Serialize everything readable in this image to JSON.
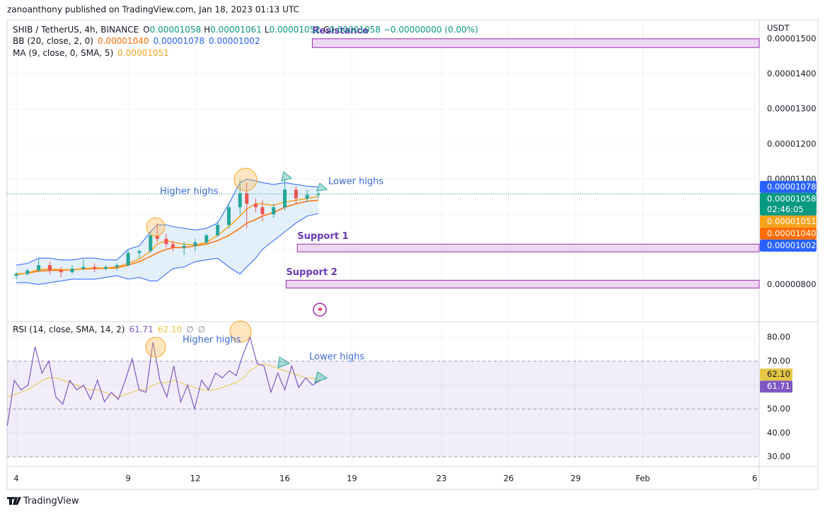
{
  "header": {
    "title": "zanoanthony published on TradingView.com, Jan 18, 2023 01:13 UTC"
  },
  "footer": {
    "brand": "TradingView"
  },
  "chart_data": [
    {
      "type": "candlestick",
      "symbol": "SHIB / TetherUS, 4h, BINANCE",
      "currency": "USDT",
      "ohlc": [
        {
          "name": "O",
          "value": 1.058e-05,
          "label": "0.00001058"
        },
        {
          "name": "H",
          "value": 1.061e-05,
          "label": "0.00001061"
        },
        {
          "name": "L",
          "value": 1.052e-05,
          "label": "0.00001052"
        },
        {
          "name": "C",
          "value": 1.058e-05,
          "label": "0.00001058"
        }
      ],
      "change": "−0.00000000 (0.00%)",
      "up_color": "#26a69a",
      "down_color": "#ef5350",
      "xlim": [
        3.59,
        37.2
      ],
      "ylim": [
        7e-06,
        1.55e-05
      ],
      "yticks": [
        {
          "value": 8e-06,
          "label": "0.00000800"
        },
        {
          "value": 9e-06,
          "label": "0.00000900"
        },
        {
          "value": 1e-05,
          "label": "0.00001000"
        },
        {
          "value": 1.1e-05,
          "label": "0.00001100"
        },
        {
          "value": 1.2e-05,
          "label": "0.00001200"
        },
        {
          "value": 1.3e-05,
          "label": "0.00001300"
        },
        {
          "value": 1.4e-05,
          "label": "0.00001400"
        },
        {
          "value": 1.5e-05,
          "label": "0.00001500"
        }
      ],
      "grid": true,
      "x": [
        4.0,
        4.5,
        5.0,
        5.5,
        6.0,
        6.5,
        7.0,
        7.5,
        8.0,
        8.5,
        9.0,
        9.5,
        10.0,
        10.3,
        10.7,
        11.0,
        11.5,
        12.0,
        12.5,
        13.0,
        13.5,
        14.0,
        14.3,
        14.7,
        15.0,
        15.5,
        16.0,
        16.5,
        17.0,
        17.5
      ],
      "open": [
        8.25e-06,
        8.3e-06,
        8.4e-06,
        8.55e-06,
        8.4e-06,
        8.35e-06,
        8.45e-06,
        8.5e-06,
        8.45e-06,
        8.5e-06,
        8.55e-06,
        8.9e-06,
        8.95e-06,
        9.4e-06,
        9.3e-06,
        9.15e-06,
        9.05e-06,
        9.1e-06,
        9.2e-06,
        9.4e-06,
        9.7e-06,
        1.02e-05,
        1.06e-05,
        1.03e-05,
        1.02e-05,
        1e-05,
        1.02e-05,
        1.07e-05,
        1.045e-05,
        1.055e-05
      ],
      "high": [
        8.35e-06,
        8.45e-06,
        8.75e-06,
        8.65e-06,
        8.5e-06,
        8.55e-06,
        8.7e-06,
        8.6e-06,
        8.55e-06,
        8.6e-06,
        9e-06,
        9e-06,
        9.5e-06,
        9.75e-06,
        9.45e-06,
        9.25e-06,
        9.2e-06,
        9.3e-06,
        9.45e-06,
        9.8e-06,
        1.03e-05,
        1.1e-05,
        1.09e-05,
        1.045e-05,
        1.04e-05,
        1.03e-05,
        1.1e-05,
        1.08e-05,
        1.07e-05,
        1.065e-05
      ],
      "low": [
        8.15e-06,
        8.25e-06,
        8.35e-06,
        8.3e-06,
        8.2e-06,
        8.3e-06,
        8.4e-06,
        8.35e-06,
        8.4e-06,
        8.4e-06,
        8.5e-06,
        8.75e-06,
        8.9e-06,
        9.2e-06,
        9.05e-06,
        8.95e-06,
        8.85e-06,
        8.95e-06,
        9.15e-06,
        9.35e-06,
        9.6e-06,
        1e-05,
        9.6e-06,
        1.005e-05,
        9.8e-06,
        9.9e-06,
        1.01e-05,
        1.03e-05,
        1.035e-05,
        1.045e-05
      ],
      "close": [
        8.3e-06,
        8.4e-06,
        8.55e-06,
        8.4e-06,
        8.35e-06,
        8.45e-06,
        8.5e-06,
        8.45e-06,
        8.5e-06,
        8.55e-06,
        8.9e-06,
        8.95e-06,
        9.4e-06,
        9.3e-06,
        9.15e-06,
        9.05e-06,
        9.1e-06,
        9.2e-06,
        9.4e-06,
        9.7e-06,
        1.02e-05,
        1.06e-05,
        1.03e-05,
        1.02e-05,
        1e-05,
        1.02e-05,
        1.07e-05,
        1.045e-05,
        1.055e-05,
        1.058e-05
      ],
      "bb": {
        "label": "BB (20, close, 2, 0)",
        "basis_color": "#ff6d00",
        "band_color": "#2962ff",
        "fill": "#e3effb",
        "legend": [
          {
            "value": 1.04e-05,
            "label": "0.00001040"
          },
          {
            "value": 1.078e-05,
            "label": "0.00001078"
          },
          {
            "value": 1.002e-05,
            "label": "0.00001002"
          }
        ],
        "upper": [
          8.55e-06,
          8.6e-06,
          8.75e-06,
          8.75e-06,
          8.7e-06,
          8.7e-06,
          8.75e-06,
          8.75e-06,
          8.7e-06,
          8.7e-06,
          9e-06,
          9.1e-06,
          9.5e-06,
          9.7e-06,
          9.7e-06,
          9.65e-06,
          9.6e-06,
          9.55e-06,
          9.6e-06,
          9.75e-06,
          1.03e-05,
          1.09e-05,
          1.1e-05,
          1.095e-05,
          1.09e-05,
          1.085e-05,
          1.09e-05,
          1.085e-05,
          1.08e-05,
          1.078e-05
        ],
        "basis": [
          8.3e-06,
          8.32e-06,
          8.38e-06,
          8.4e-06,
          8.4e-06,
          8.42e-06,
          8.44e-06,
          8.45e-06,
          8.46e-06,
          8.47e-06,
          8.55e-06,
          8.65e-06,
          8.8e-06,
          8.9e-06,
          9e-06,
          9.05e-06,
          9.05e-06,
          9.1e-06,
          9.15e-06,
          9.25e-06,
          9.4e-06,
          9.6e-06,
          9.75e-06,
          9.85e-06,
          9.95e-06,
          1.005e-05,
          1.02e-05,
          1.03e-05,
          1.037e-05,
          1.04e-05
        ],
        "lower": [
          8.05e-06,
          8.05e-06,
          8e-06,
          8.05e-06,
          8.1e-06,
          8.15e-06,
          8.15e-06,
          8.15e-06,
          8.2e-06,
          8.25e-06,
          8.15e-06,
          8.2e-06,
          8.1e-06,
          8.1e-06,
          8.3e-06,
          8.45e-06,
          8.5e-06,
          8.65e-06,
          8.7e-06,
          8.75e-06,
          8.5e-06,
          8.3e-06,
          8.5e-06,
          8.75e-06,
          9e-06,
          9.25e-06,
          9.5e-06,
          9.75e-06,
          9.95e-06,
          1.002e-05
        ]
      },
      "ma": {
        "label": "MA (9, close, 0, SMA, 5)",
        "color": "#f7a21b",
        "legend": {
          "value": 1.051e-05,
          "label": "0.00001051"
        },
        "values": [
          8.28e-06,
          8.33e-06,
          8.42e-06,
          8.45e-06,
          8.42e-06,
          8.42e-06,
          8.45e-06,
          8.47e-06,
          8.47e-06,
          8.5e-06,
          8.6e-06,
          8.72e-06,
          8.95e-06,
          9.15e-06,
          9.25e-06,
          9.2e-06,
          9.15e-06,
          9.12e-06,
          9.2e-06,
          9.4e-06,
          9.65e-06,
          9.95e-06,
          1.015e-05,
          1.03e-05,
          1.03e-05,
          1.025e-05,
          1.035e-05,
          1.04e-05,
          1.045e-05,
          1.051e-05
        ]
      },
      "price_labels": [
        {
          "value": 1.078e-05,
          "label": "0.00001078",
          "color": "#2962ff"
        },
        {
          "value": 1.058e-05,
          "label": "0.00001058",
          "color": "#089981",
          "countdown": "02:46:05"
        },
        {
          "value": 1.051e-05,
          "label": "0.00001051",
          "color": "#f7a21b"
        },
        {
          "value": 1.04e-05,
          "label": "0.00001040",
          "color": "#ff6d00"
        },
        {
          "value": 1.002e-05,
          "label": "0.00001002",
          "color": "#2962ff"
        }
      ],
      "zones": [
        {
          "label": "Resistance",
          "from": 1.475e-05,
          "to": 1.5e-05,
          "x": 17.23
        },
        {
          "label": "Support 1",
          "from": 8.93e-06,
          "to": 9.15e-06,
          "x": 16.56
        },
        {
          "label": "Support 2",
          "from": 7.9e-06,
          "to": 8.12e-06,
          "x": 16.06
        }
      ],
      "zone_color": "#9c27b0",
      "annotations": [
        "Higher highs",
        "Lower highs"
      ]
    },
    {
      "type": "line",
      "label": "RSI (14, close, SMA, 14, 2)",
      "legend_values": [
        {
          "value": 61.71,
          "label": "61.71"
        },
        {
          "value": 62.1,
          "label": "62.10"
        }
      ],
      "na_labels": [
        "∅",
        "∅"
      ],
      "xlim": [
        3.59,
        37.2
      ],
      "xticks": [
        4,
        9,
        12,
        16,
        19,
        23,
        26,
        29,
        {
          "value": 32,
          "label": "Feb"
        },
        {
          "value": 37,
          "label": "6"
        }
      ],
      "ylim": [
        25.9,
        86.5
      ],
      "yticks": [
        {
          "value": 30,
          "label": "30.00"
        },
        {
          "value": 40,
          "label": "40.00"
        },
        {
          "value": 50,
          "label": "50.00"
        },
        {
          "value": 60,
          "label": "60.00"
        },
        {
          "value": 70,
          "label": "70.00"
        },
        {
          "value": 80,
          "label": "80.00"
        }
      ],
      "bands": [
        30,
        50,
        70
      ],
      "band_fill": "rgba(126,87,194,0.1)",
      "grid": true,
      "x": [
        3.6,
        3.91,
        4.22,
        4.53,
        4.84,
        5.15,
        5.46,
        5.77,
        6.08,
        6.39,
        6.7,
        7.01,
        7.32,
        7.63,
        7.94,
        8.25,
        8.56,
        8.87,
        9.18,
        9.49,
        9.8,
        10.11,
        10.42,
        10.73,
        11.04,
        11.35,
        11.66,
        11.97,
        12.28,
        12.59,
        12.9,
        13.21,
        13.52,
        13.83,
        14.14,
        14.45,
        14.76,
        15.07,
        15.38,
        15.69,
        16.0,
        16.31,
        16.62,
        16.93,
        17.24,
        17.55
      ],
      "series": [
        {
          "name": "RSI",
          "color": "#7e57c2",
          "values": [
            43,
            62,
            58,
            60,
            76,
            65,
            70,
            55,
            52,
            62,
            58,
            60,
            54,
            62,
            53,
            57,
            54,
            62,
            71,
            58,
            57,
            78,
            62,
            55,
            68,
            53,
            60,
            50,
            62,
            58,
            65,
            63,
            66,
            64,
            73,
            80,
            69,
            68,
            57,
            65,
            58,
            68,
            59,
            63,
            60,
            61.71
          ]
        },
        {
          "name": "RSI-based MA",
          "color": "#e6c645",
          "values": [
            55,
            56,
            57,
            58,
            60,
            62,
            63,
            63,
            62,
            61,
            60,
            59,
            58,
            58,
            57,
            56,
            55,
            56,
            57,
            58,
            58,
            60,
            61,
            61,
            62,
            61,
            60,
            59,
            58,
            58,
            58,
            59,
            60,
            61,
            63,
            66,
            68,
            69,
            68,
            67,
            66,
            65,
            64,
            63,
            63,
            62.1
          ]
        }
      ],
      "annotations": [
        "Higher highs",
        "Lower highs"
      ]
    }
  ]
}
